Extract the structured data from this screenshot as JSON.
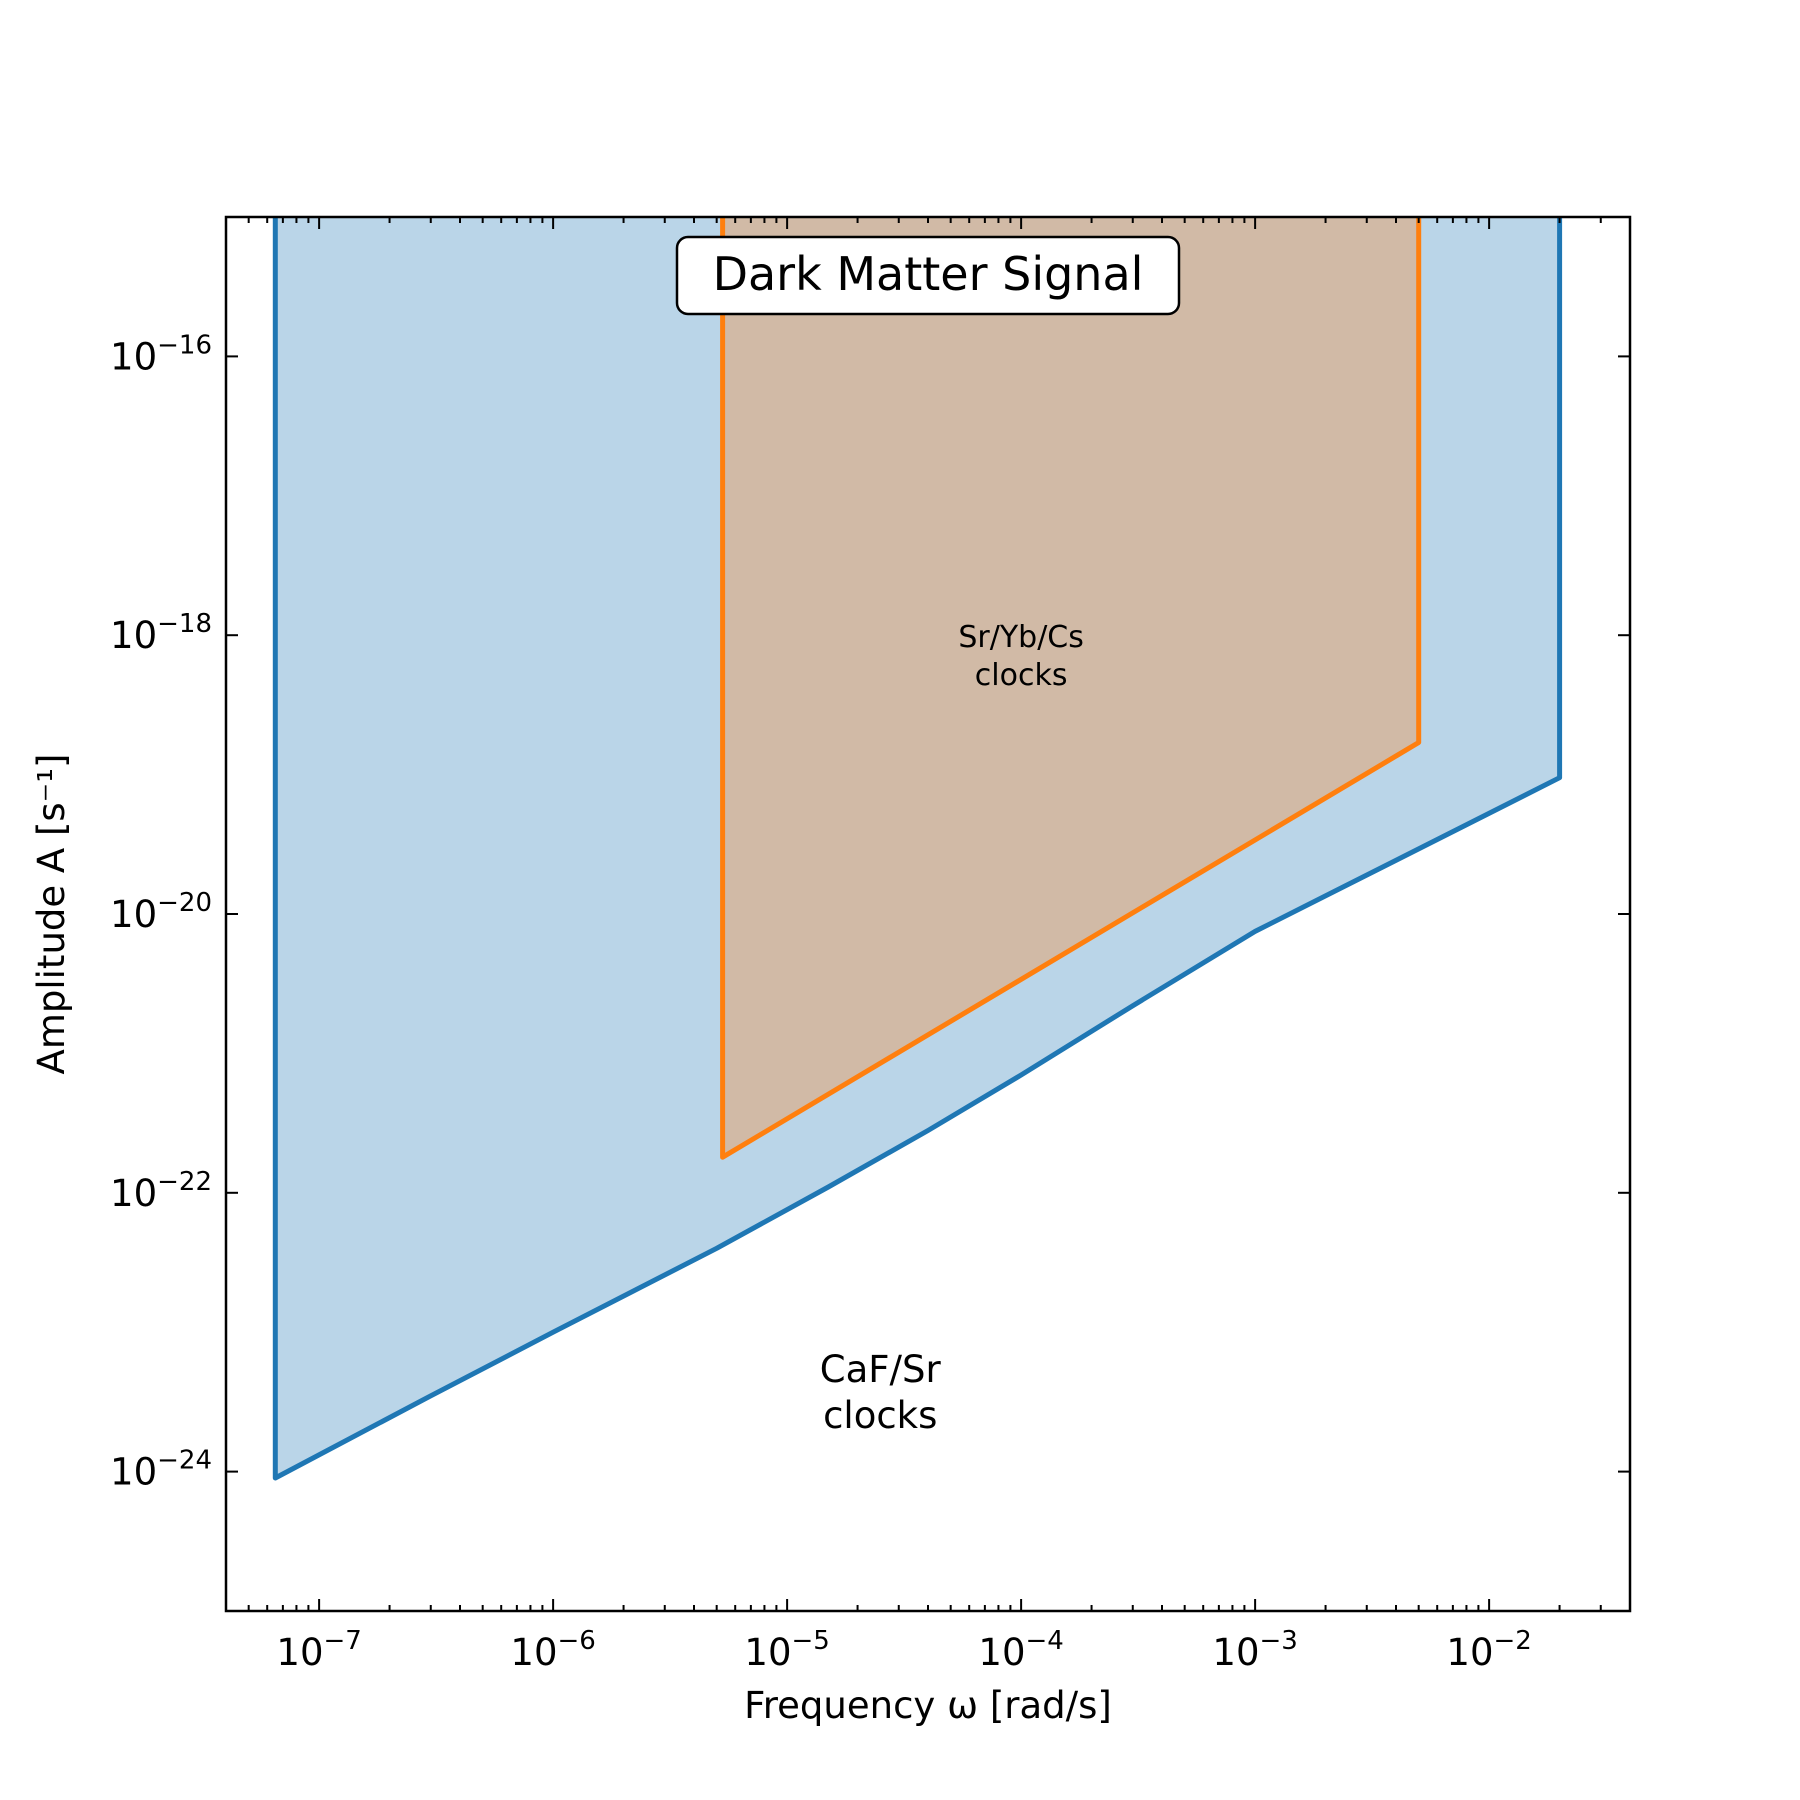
{
  "chart_data": {
    "type": "area",
    "title": "",
    "annotation": "Dark Matter Signal",
    "xlabel": "Frequency ω [rad/s]",
    "ylabel": "Amplitude A [s⁻¹]",
    "x_scale": "log",
    "y_scale": "log",
    "xlim": [
      4e-08,
      0.04
    ],
    "ylim": [
      1e-25,
      1e-15
    ],
    "x_ticks": [
      {
        "value": 1e-07,
        "base": "10",
        "exp": "−7"
      },
      {
        "value": 1e-06,
        "base": "10",
        "exp": "−6"
      },
      {
        "value": 1e-05,
        "base": "10",
        "exp": "−5"
      },
      {
        "value": 0.0001,
        "base": "10",
        "exp": "−4"
      },
      {
        "value": 0.001,
        "base": "10",
        "exp": "−3"
      },
      {
        "value": 0.01,
        "base": "10",
        "exp": "−2"
      }
    ],
    "y_ticks": [
      {
        "value": 1e-16,
        "base": "10",
        "exp": "−16"
      },
      {
        "value": 1e-18,
        "base": "10",
        "exp": "−18"
      },
      {
        "value": 1e-20,
        "base": "10",
        "exp": "−20"
      },
      {
        "value": 1e-22,
        "base": "10",
        "exp": "−22"
      },
      {
        "value": 1e-24,
        "base": "10",
        "exp": "−24"
      }
    ],
    "grid": false,
    "series": [
      {
        "label_lines": [
          "CaF/Sr",
          "clocks"
        ],
        "label_position": {
          "x": 2.5e-05,
          "y": 3e-24
        },
        "color": "#1f77b4",
        "fill": "#bad5e8",
        "boundary": [
          {
            "x": 6.5e-08,
            "y": 1e-15
          },
          {
            "x": 6.5e-08,
            "y": 9e-25
          },
          {
            "x": 3e-07,
            "y": 3.5e-24
          },
          {
            "x": 1e-06,
            "y": 1e-23
          },
          {
            "x": 5e-06,
            "y": 4e-23
          },
          {
            "x": 1.5e-05,
            "y": 1.1e-22
          },
          {
            "x": 4e-05,
            "y": 2.8e-22
          },
          {
            "x": 0.0001,
            "y": 7e-22
          },
          {
            "x": 0.0003,
            "y": 2.2e-21
          },
          {
            "x": 0.001,
            "y": 7.5e-21
          },
          {
            "x": 0.02,
            "y": 9.5e-20
          },
          {
            "x": 0.02,
            "y": 1e-15
          }
        ]
      },
      {
        "label_lines": [
          "Sr/Yb/Cs",
          "clocks"
        ],
        "label_position": {
          "x": 0.0001,
          "y": 6e-19
        },
        "color": "#ff7f0e",
        "fill": "#d1baa6",
        "boundary": [
          {
            "x": 5.3e-06,
            "y": 1e-15
          },
          {
            "x": 5.3e-06,
            "y": 1.8e-22
          },
          {
            "x": 0.005,
            "y": 1.7e-19
          },
          {
            "x": 0.005,
            "y": 1e-15
          }
        ]
      }
    ]
  }
}
